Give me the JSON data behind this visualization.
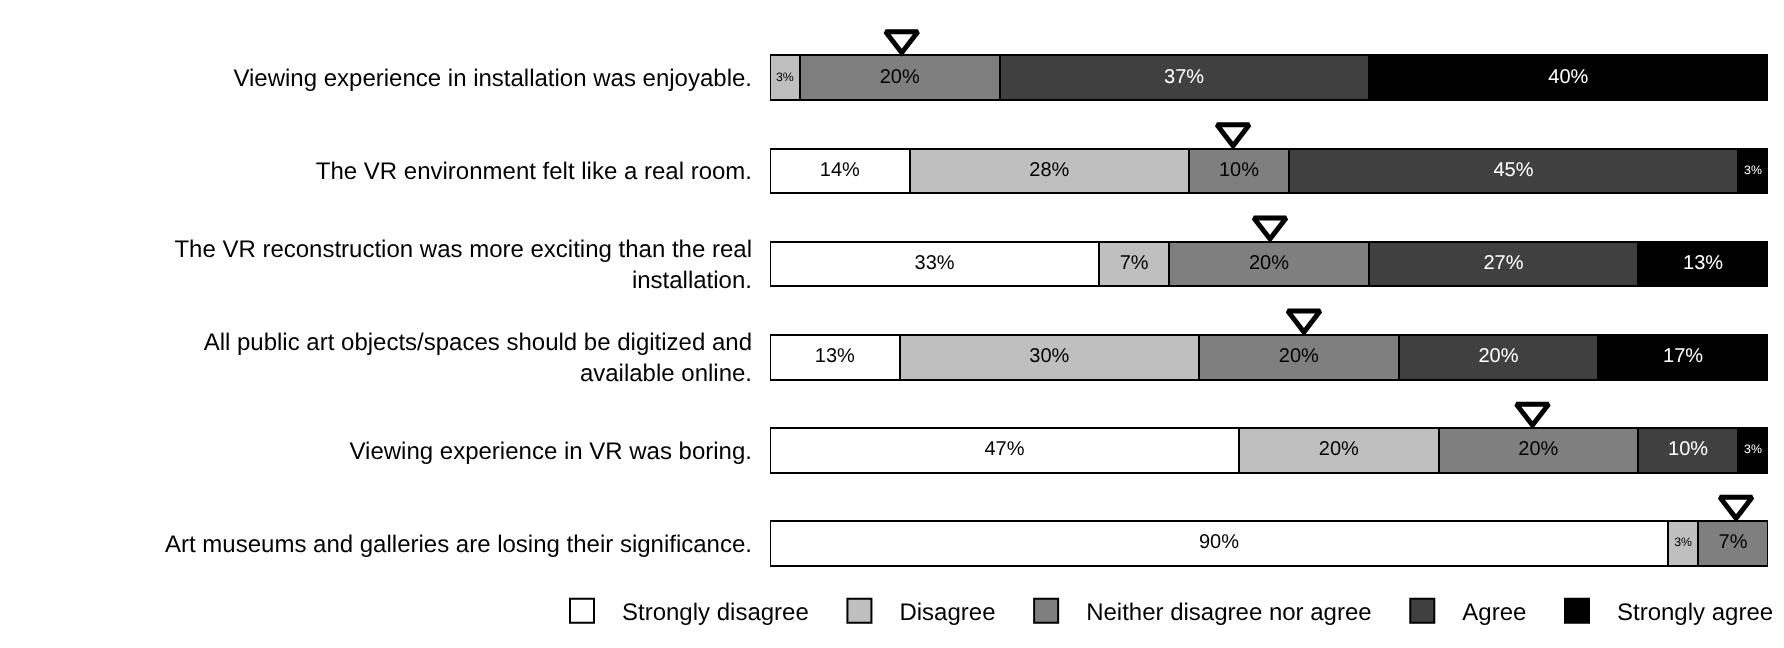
{
  "chart_data": {
    "type": "bar",
    "orientation": "horizontal",
    "stacked": true,
    "legend": "bottom",
    "tick_labels": "y",
    "xlim": [
      0,
      100
    ],
    "categories": [
      "Viewing experience in installation was enjoyable.",
      "The VR environment felt like a real room.",
      "The VR reconstruction was more exciting than the real installation.",
      "All public art objects/spaces should be digitized and available online.",
      "Viewing experience in VR was boring.",
      "Art museums and galleries are losing their significance."
    ],
    "series": [
      {
        "name": "Strongly disagree",
        "color": "#ffffff",
        "values": [
          null,
          14,
          33,
          13,
          47,
          90
        ],
        "value_labels": [
          null,
          "14%",
          "33%",
          "13%",
          "47%",
          "90%"
        ]
      },
      {
        "name": "Disagree",
        "color": "#bfbfbf",
        "values": [
          3,
          28,
          7,
          30,
          20,
          3
        ],
        "value_labels": [
          "3%",
          "28%",
          "7%",
          "30%",
          "20%",
          "3%"
        ]
      },
      {
        "name": "Neither disagree nor agree",
        "color": "#7f7f7f",
        "values": [
          20,
          10,
          20,
          20,
          20,
          7
        ],
        "value_labels": [
          "20%",
          "10%",
          "20%",
          "20%",
          "20%",
          "7%"
        ]
      },
      {
        "name": "Agree",
        "color": "#404040",
        "values": [
          37,
          45,
          27,
          20,
          10,
          null
        ],
        "value_labels": [
          "37%",
          "45%",
          "27%",
          "20%",
          "10%",
          null
        ]
      },
      {
        "name": "Strongly agree",
        "color": "#000000",
        "values": [
          40,
          3,
          13,
          17,
          3,
          null
        ],
        "value_labels": [
          "40%",
          "3%",
          "13%",
          "17%",
          "3%",
          null
        ]
      },
      {
        "type": "scatter",
        "marker": "triangle",
        "color": "#000000",
        "values": [
          13.2,
          46.4,
          50.1,
          53.5,
          76.4,
          96.8
        ]
      }
    ]
  }
}
